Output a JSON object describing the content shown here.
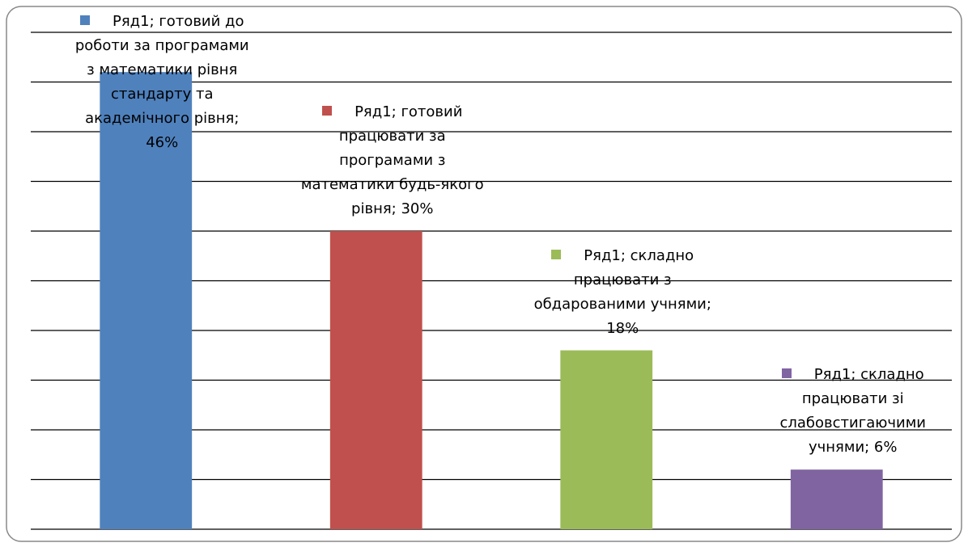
{
  "chart_data": {
    "type": "bar",
    "values": [
      46,
      30,
      18,
      6
    ],
    "value_labels": [
      "Ряд1; готовий до роботи за програмами з математики рівня стандарту та академічного рівня; 46%",
      "Ряд1; готовий працювати за програмами з математики будь-якого рівня; 30%",
      "Ряд1; складно працювати з обдарованими учнями; 18%",
      "Ряд1; складно працювати зі слабовстигаючими учнями; 6%"
    ],
    "colors": [
      "#4f81bd",
      "#c0504d",
      "#9bbb59",
      "#8064a2"
    ],
    "ylim": [
      0,
      50
    ],
    "yticks": [
      0,
      5,
      10,
      15,
      20,
      25,
      30,
      35,
      40,
      45,
      50
    ],
    "grid": true
  }
}
